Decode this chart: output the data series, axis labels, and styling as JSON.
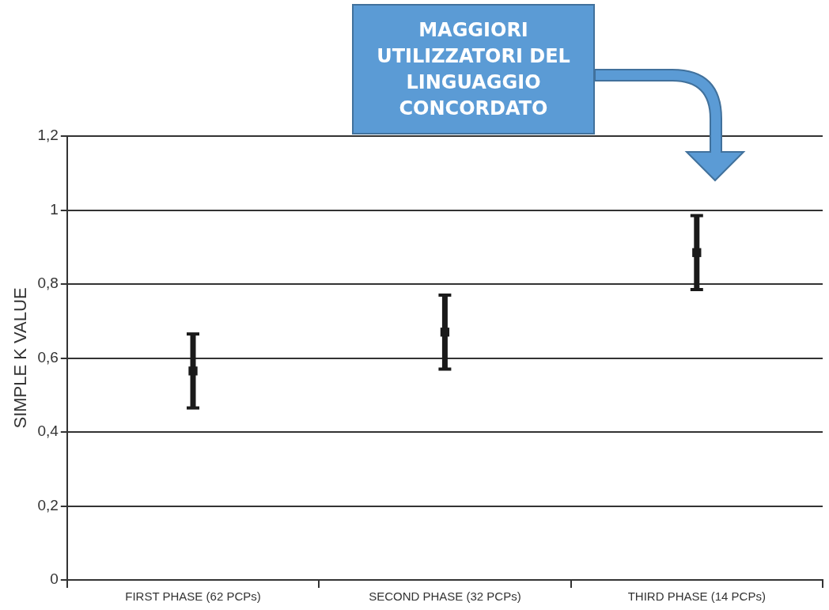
{
  "chart_data": {
    "type": "scatter",
    "categories": [
      "FIRST PHASE (62 PCPs)",
      "SECOND PHASE (32 PCPs)",
      "THIRD PHASE (14 PCPs)"
    ],
    "values": [
      0.565,
      0.67,
      0.885
    ],
    "errors": [
      0.1,
      0.1,
      0.1
    ],
    "color": "#1a1a1a",
    "marker": "square",
    "ylabel": "SIMPLE K VALUE",
    "ylim": [
      0,
      1.2
    ],
    "yticks": [
      0,
      {
        "value": 0.2,
        "label": "0,2"
      },
      {
        "value": 0.4,
        "label": "0,4"
      },
      {
        "value": 0.6,
        "label": "0,6"
      },
      {
        "value": 0.8,
        "label": "0,8"
      },
      1,
      {
        "value": 1.2,
        "label": "1,2"
      }
    ],
    "grid": "y",
    "annotations": [
      "MAGGIORI UTILIZZATORI DEL LINGUAGGIO CONCORDATO"
    ]
  }
}
